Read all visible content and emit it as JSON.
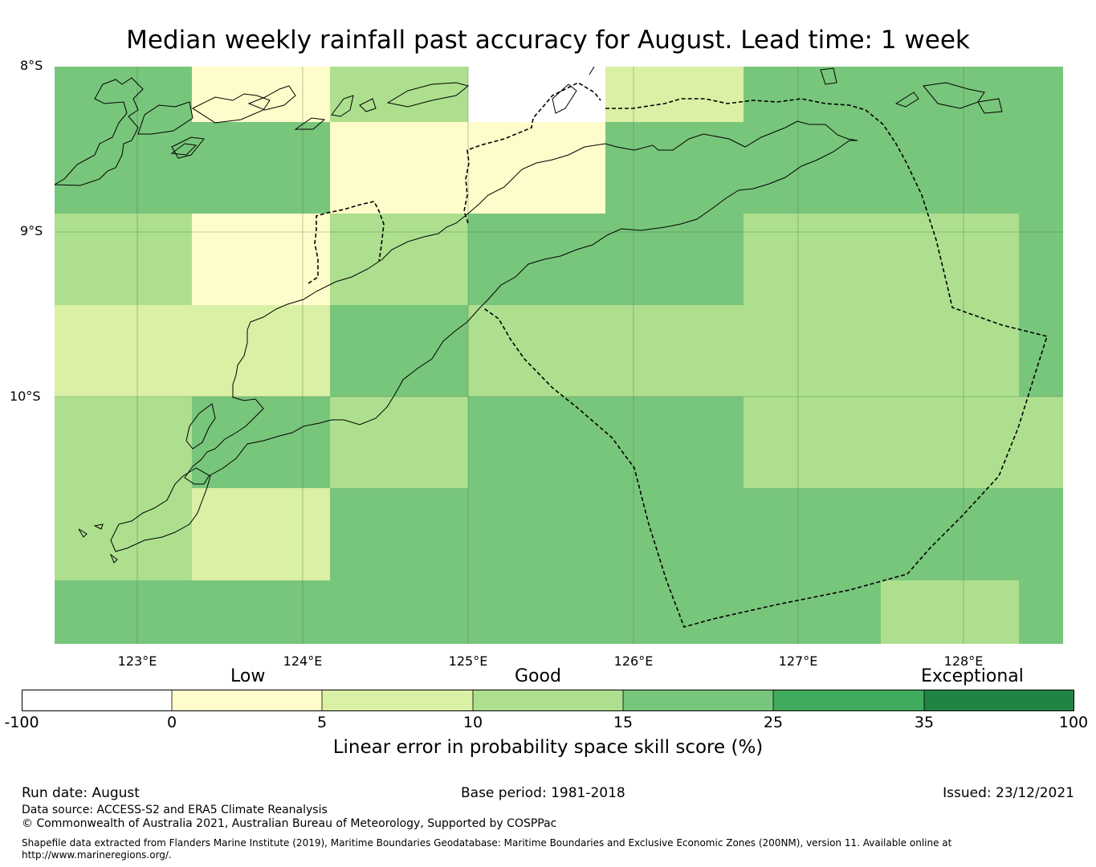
{
  "title": "Median weekly rainfall past accuracy for August. Lead time: 1 week",
  "map": {
    "lat_labels": [
      "8°S",
      "9°S",
      "10°S"
    ],
    "lon_labels": [
      "123°E",
      "124°E",
      "125°E",
      "126°E",
      "127°E",
      "128°E"
    ],
    "extent": {
      "lon_min": 122.5,
      "lon_max": 128.6,
      "lat_north": -8.0,
      "lat_south": -11.5
    },
    "colors": {
      "white": "#ffffff",
      "c0_5": "#fefcca",
      "c5_10": "#daf0a4",
      "c10_15": "#aedf8e",
      "c15_25": "#78c67b",
      "c25_35": "#40ab5d",
      "c35_100": "#218445"
    }
  },
  "colorbar": {
    "ticks": [
      "-100",
      "0",
      "5",
      "10",
      "15",
      "25",
      "35",
      "100"
    ],
    "categories": [
      "Low",
      "Good",
      "Exceptional"
    ],
    "label": "Linear error in probability space skill score (%)",
    "colors": [
      "#ffffff",
      "#fefcca",
      "#daf0a4",
      "#aedf8e",
      "#78c67b",
      "#40ab5d",
      "#218445"
    ]
  },
  "footer": {
    "run_date": "Run date: August",
    "base_period": "Base period: 1981-2018",
    "issued": "Issued: 23/12/2021",
    "data_source": "Data source: ACCESS-S2 and ERA5 Climate Reanalysis",
    "copyright": "© Commonwealth of Australia 2021, Australian Bureau of Meteorology, Supported by COSPPac",
    "shapefile_1": "Shapefile data extracted from Flanders Marine Institute (2019), Maritime Boundaries Geodatabase: Maritime Boundaries and Exclusive Economic Zones (200NM), version 11. Available online at",
    "shapefile_2": "http://www.marineregions.org/."
  }
}
